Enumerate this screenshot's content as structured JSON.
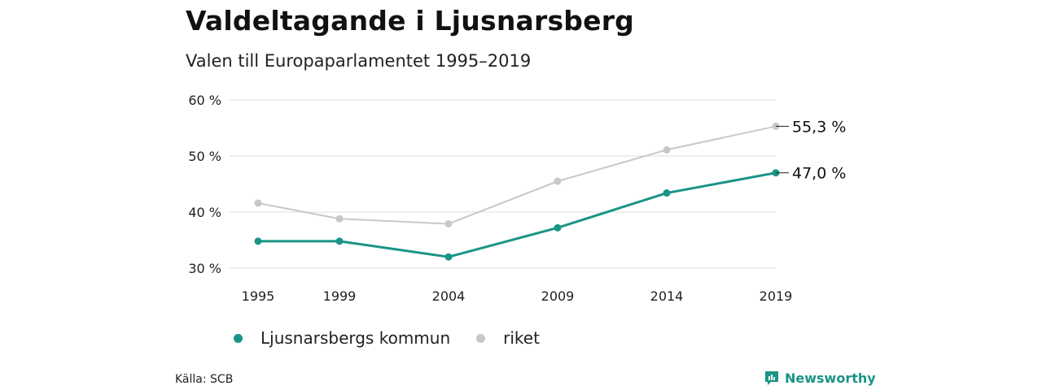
{
  "header": {
    "title": "Valdeltagande i Ljusnarsberg",
    "subtitle": "Valen till Europaparlamentet 1995–2019"
  },
  "chart_data": {
    "type": "line",
    "title": "Valdeltagande i Ljusnarsberg",
    "subtitle": "Valen till Europaparlamentet 1995–2019",
    "xlabel": "",
    "ylabel": "",
    "x": [
      1995,
      1999,
      2004,
      2009,
      2014,
      2019
    ],
    "x_tick_labels": [
      "1995",
      "1999",
      "2004",
      "2009",
      "2014",
      "2019"
    ],
    "ylim": [
      30,
      60
    ],
    "y_ticks": [
      30,
      40,
      50,
      60
    ],
    "y_tick_labels": [
      "30 %",
      "40 %",
      "50 %",
      "60 %"
    ],
    "grid": true,
    "legend_position": "bottom-left",
    "series": [
      {
        "name": "Ljusnarsbergs kommun",
        "color": "#1a9486",
        "values": [
          34.8,
          34.8,
          32.0,
          37.2,
          43.4,
          47.0
        ],
        "end_label": "47,0 %"
      },
      {
        "name": "riket",
        "color": "#c8c8c8",
        "values": [
          41.6,
          38.8,
          37.9,
          45.5,
          51.1,
          55.3
        ],
        "end_label": "55,3 %"
      }
    ]
  },
  "footer": {
    "source": "Källa: SCB",
    "brand": "Newsworthy",
    "brand_color": "#1a9486"
  }
}
